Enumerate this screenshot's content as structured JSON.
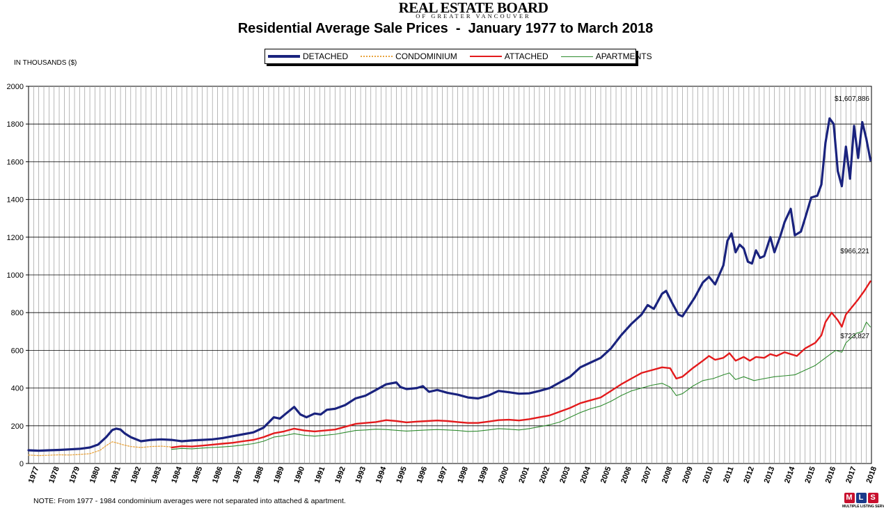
{
  "header": {
    "brand_name": "REAL ESTATE BOARD",
    "brand_sub": "OF GREATER VANCOUVER",
    "title": "Residential Average Sale Prices  -  January 1977 to March 2018"
  },
  "units_label": "IN THOUSANDS ($)",
  "note": "NOTE:  From 1977 - 1984 condominium averages were not separated into attached & apartment.",
  "logo": {
    "letters": [
      "M",
      "L",
      "S"
    ],
    "text": "MULTIPLE LISTING SERVICE"
  },
  "legend": [
    {
      "label": "DETACHED",
      "color": "#1a237e",
      "style": "solid"
    },
    {
      "label": "CONDOMINIUM",
      "color": "#e8a33d",
      "style": "dotted"
    },
    {
      "label": "ATTACHED",
      "color": "#e31a1c",
      "style": "solid"
    },
    {
      "label": "APARTMENTS",
      "color": "#2e8b2e",
      "style": "solid"
    }
  ],
  "chart_data": {
    "type": "line",
    "title": "Residential Average Sale Prices  -  January 1977 to March 2018",
    "ylabel": "IN THOUSANDS ($)",
    "xlim": [
      1977,
      2018.25
    ],
    "ylim": [
      0,
      2000
    ],
    "y_ticks": [
      0,
      200,
      400,
      600,
      800,
      1000,
      1200,
      1400,
      1600,
      1800,
      2000
    ],
    "x_tick_labels": [
      "1977",
      "1978",
      "1979",
      "1980",
      "1981",
      "1982",
      "1983",
      "1984",
      "1985",
      "1986",
      "1987",
      "1988",
      "1989",
      "1990",
      "1991",
      "1992",
      "1993",
      "1994",
      "1995",
      "1996",
      "1997",
      "1998",
      "1999",
      "2000",
      "2001",
      "2002",
      "2003",
      "2004",
      "2005",
      "2006",
      "2007",
      "2008",
      "2009",
      "2010",
      "2011",
      "2012",
      "2013",
      "2014",
      "2015",
      "2016",
      "2017",
      "2018"
    ],
    "grid": true,
    "series": [
      {
        "name": "DETACHED",
        "color": "#1a237e",
        "width": 3.2,
        "dash": "",
        "points": [
          [
            1977,
            70
          ],
          [
            1977.5,
            68
          ],
          [
            1978,
            70
          ],
          [
            1978.5,
            72
          ],
          [
            1979,
            75
          ],
          [
            1979.5,
            78
          ],
          [
            1980,
            85
          ],
          [
            1980.4,
            100
          ],
          [
            1980.8,
            140
          ],
          [
            1981.1,
            178
          ],
          [
            1981.3,
            185
          ],
          [
            1981.5,
            180
          ],
          [
            1981.7,
            160
          ],
          [
            1982,
            140
          ],
          [
            1982.5,
            118
          ],
          [
            1983,
            125
          ],
          [
            1983.5,
            128
          ],
          [
            1984,
            125
          ],
          [
            1984.5,
            118
          ],
          [
            1985,
            122
          ],
          [
            1985.5,
            125
          ],
          [
            1986,
            128
          ],
          [
            1986.5,
            135
          ],
          [
            1987,
            145
          ],
          [
            1987.5,
            155
          ],
          [
            1988,
            165
          ],
          [
            1988.5,
            190
          ],
          [
            1989,
            245
          ],
          [
            1989.3,
            238
          ],
          [
            1989.6,
            265
          ],
          [
            1990,
            300
          ],
          [
            1990.3,
            260
          ],
          [
            1990.6,
            245
          ],
          [
            1991,
            265
          ],
          [
            1991.3,
            260
          ],
          [
            1991.6,
            285
          ],
          [
            1992,
            290
          ],
          [
            1992.5,
            310
          ],
          [
            1993,
            345
          ],
          [
            1993.5,
            360
          ],
          [
            1994,
            390
          ],
          [
            1994.5,
            420
          ],
          [
            1995,
            430
          ],
          [
            1995.2,
            405
          ],
          [
            1995.5,
            395
          ],
          [
            1996,
            400
          ],
          [
            1996.3,
            410
          ],
          [
            1996.6,
            380
          ],
          [
            1997,
            390
          ],
          [
            1997.5,
            375
          ],
          [
            1998,
            365
          ],
          [
            1998.5,
            350
          ],
          [
            1999,
            345
          ],
          [
            1999.5,
            360
          ],
          [
            2000,
            385
          ],
          [
            2000.5,
            378
          ],
          [
            2001,
            370
          ],
          [
            2001.5,
            372
          ],
          [
            2002,
            385
          ],
          [
            2002.5,
            400
          ],
          [
            2003,
            430
          ],
          [
            2003.5,
            460
          ],
          [
            2004,
            510
          ],
          [
            2004.5,
            535
          ],
          [
            2005,
            560
          ],
          [
            2005.5,
            610
          ],
          [
            2006,
            680
          ],
          [
            2006.5,
            740
          ],
          [
            2007,
            790
          ],
          [
            2007.3,
            840
          ],
          [
            2007.6,
            820
          ],
          [
            2008,
            900
          ],
          [
            2008.2,
            915
          ],
          [
            2008.5,
            850
          ],
          [
            2008.8,
            790
          ],
          [
            2009,
            780
          ],
          [
            2009.3,
            830
          ],
          [
            2009.6,
            880
          ],
          [
            2010,
            960
          ],
          [
            2010.3,
            990
          ],
          [
            2010.6,
            950
          ],
          [
            2011,
            1050
          ],
          [
            2011.2,
            1180
          ],
          [
            2011.4,
            1220
          ],
          [
            2011.6,
            1120
          ],
          [
            2011.8,
            1160
          ],
          [
            2012,
            1140
          ],
          [
            2012.2,
            1070
          ],
          [
            2012.4,
            1060
          ],
          [
            2012.6,
            1130
          ],
          [
            2012.8,
            1090
          ],
          [
            2013,
            1100
          ],
          [
            2013.3,
            1200
          ],
          [
            2013.5,
            1120
          ],
          [
            2013.8,
            1210
          ],
          [
            2014,
            1280
          ],
          [
            2014.3,
            1350
          ],
          [
            2014.5,
            1210
          ],
          [
            2014.8,
            1230
          ],
          [
            2015,
            1300
          ],
          [
            2015.3,
            1410
          ],
          [
            2015.6,
            1420
          ],
          [
            2015.8,
            1480
          ],
          [
            2016,
            1700
          ],
          [
            2016.2,
            1830
          ],
          [
            2016.4,
            1800
          ],
          [
            2016.6,
            1550
          ],
          [
            2016.8,
            1470
          ],
          [
            2017,
            1680
          ],
          [
            2017.2,
            1510
          ],
          [
            2017.4,
            1790
          ],
          [
            2017.6,
            1620
          ],
          [
            2017.8,
            1810
          ],
          [
            2018,
            1720
          ],
          [
            2018.2,
            1608
          ]
        ]
      },
      {
        "name": "CONDOMINIUM",
        "color": "#e8a33d",
        "width": 1.3,
        "dash": "2,2",
        "points": [
          [
            1977,
            45
          ],
          [
            1977.5,
            42
          ],
          [
            1978,
            44
          ],
          [
            1978.5,
            46
          ],
          [
            1979,
            45
          ],
          [
            1979.5,
            48
          ],
          [
            1980,
            52
          ],
          [
            1980.5,
            70
          ],
          [
            1980.8,
            95
          ],
          [
            1981.1,
            115
          ],
          [
            1981.3,
            110
          ],
          [
            1981.6,
            100
          ],
          [
            1982,
            90
          ],
          [
            1982.5,
            85
          ],
          [
            1983,
            90
          ],
          [
            1983.5,
            92
          ],
          [
            1984,
            88
          ]
        ]
      },
      {
        "name": "ATTACHED",
        "color": "#e31a1c",
        "width": 2.4,
        "dash": "",
        "points": [
          [
            1984,
            85
          ],
          [
            1984.5,
            92
          ],
          [
            1985,
            90
          ],
          [
            1985.5,
            95
          ],
          [
            1986,
            100
          ],
          [
            1986.5,
            105
          ],
          [
            1987,
            110
          ],
          [
            1987.5,
            118
          ],
          [
            1988,
            125
          ],
          [
            1988.5,
            140
          ],
          [
            1989,
            160
          ],
          [
            1989.5,
            170
          ],
          [
            1990,
            185
          ],
          [
            1990.5,
            175
          ],
          [
            1991,
            170
          ],
          [
            1991.5,
            175
          ],
          [
            1992,
            180
          ],
          [
            1992.5,
            195
          ],
          [
            1993,
            210
          ],
          [
            1993.5,
            215
          ],
          [
            1994,
            220
          ],
          [
            1994.5,
            230
          ],
          [
            1995,
            225
          ],
          [
            1995.5,
            218
          ],
          [
            1996,
            222
          ],
          [
            1996.5,
            225
          ],
          [
            1997,
            228
          ],
          [
            1997.5,
            225
          ],
          [
            1998,
            220
          ],
          [
            1998.5,
            215
          ],
          [
            1999,
            215
          ],
          [
            1999.5,
            222
          ],
          [
            2000,
            230
          ],
          [
            2000.5,
            232
          ],
          [
            2001,
            228
          ],
          [
            2001.5,
            235
          ],
          [
            2002,
            245
          ],
          [
            2002.5,
            255
          ],
          [
            2003,
            275
          ],
          [
            2003.5,
            295
          ],
          [
            2004,
            320
          ],
          [
            2004.5,
            335
          ],
          [
            2005,
            350
          ],
          [
            2005.5,
            385
          ],
          [
            2006,
            420
          ],
          [
            2006.5,
            450
          ],
          [
            2007,
            480
          ],
          [
            2007.5,
            495
          ],
          [
            2008,
            510
          ],
          [
            2008.4,
            505
          ],
          [
            2008.7,
            450
          ],
          [
            2009,
            460
          ],
          [
            2009.5,
            505
          ],
          [
            2010,
            545
          ],
          [
            2010.3,
            570
          ],
          [
            2010.6,
            550
          ],
          [
            2011,
            560
          ],
          [
            2011.3,
            585
          ],
          [
            2011.6,
            545
          ],
          [
            2012,
            565
          ],
          [
            2012.3,
            545
          ],
          [
            2012.6,
            565
          ],
          [
            2013,
            560
          ],
          [
            2013.3,
            580
          ],
          [
            2013.6,
            570
          ],
          [
            2014,
            590
          ],
          [
            2014.3,
            580
          ],
          [
            2014.6,
            570
          ],
          [
            2015,
            610
          ],
          [
            2015.5,
            640
          ],
          [
            2015.8,
            680
          ],
          [
            2016,
            750
          ],
          [
            2016.3,
            800
          ],
          [
            2016.6,
            760
          ],
          [
            2016.8,
            725
          ],
          [
            2017,
            790
          ],
          [
            2017.3,
            830
          ],
          [
            2017.6,
            870
          ],
          [
            2017.9,
            915
          ],
          [
            2018.2,
            966
          ]
        ]
      },
      {
        "name": "APARTMENTS",
        "color": "#2e8b2e",
        "width": 1.1,
        "dash": "",
        "points": [
          [
            1984,
            75
          ],
          [
            1984.5,
            80
          ],
          [
            1985,
            78
          ],
          [
            1985.5,
            82
          ],
          [
            1986,
            85
          ],
          [
            1986.5,
            88
          ],
          [
            1987,
            92
          ],
          [
            1987.5,
            98
          ],
          [
            1988,
            105
          ],
          [
            1988.5,
            118
          ],
          [
            1989,
            140
          ],
          [
            1989.5,
            148
          ],
          [
            1990,
            158
          ],
          [
            1990.5,
            150
          ],
          [
            1991,
            145
          ],
          [
            1991.5,
            150
          ],
          [
            1992,
            155
          ],
          [
            1992.5,
            165
          ],
          [
            1993,
            175
          ],
          [
            1993.5,
            178
          ],
          [
            1994,
            182
          ],
          [
            1994.5,
            180
          ],
          [
            1995,
            176
          ],
          [
            1995.5,
            172
          ],
          [
            1996,
            175
          ],
          [
            1996.5,
            178
          ],
          [
            1997,
            180
          ],
          [
            1997.5,
            178
          ],
          [
            1998,
            175
          ],
          [
            1998.5,
            170
          ],
          [
            1999,
            172
          ],
          [
            1999.5,
            178
          ],
          [
            2000,
            185
          ],
          [
            2000.5,
            182
          ],
          [
            2001,
            178
          ],
          [
            2001.5,
            185
          ],
          [
            2002,
            195
          ],
          [
            2002.5,
            205
          ],
          [
            2003,
            220
          ],
          [
            2003.5,
            245
          ],
          [
            2004,
            270
          ],
          [
            2004.5,
            290
          ],
          [
            2005,
            305
          ],
          [
            2005.5,
            330
          ],
          [
            2006,
            360
          ],
          [
            2006.5,
            385
          ],
          [
            2007,
            400
          ],
          [
            2007.5,
            415
          ],
          [
            2008,
            425
          ],
          [
            2008.4,
            405
          ],
          [
            2008.7,
            360
          ],
          [
            2009,
            370
          ],
          [
            2009.5,
            410
          ],
          [
            2010,
            440
          ],
          [
            2010.5,
            450
          ],
          [
            2011,
            470
          ],
          [
            2011.3,
            480
          ],
          [
            2011.6,
            445
          ],
          [
            2012,
            460
          ],
          [
            2012.5,
            440
          ],
          [
            2013,
            450
          ],
          [
            2013.5,
            460
          ],
          [
            2014,
            465
          ],
          [
            2014.5,
            470
          ],
          [
            2015,
            495
          ],
          [
            2015.5,
            520
          ],
          [
            2016,
            560
          ],
          [
            2016.5,
            600
          ],
          [
            2016.8,
            590
          ],
          [
            2017,
            640
          ],
          [
            2017.5,
            690
          ],
          [
            2017.8,
            700
          ],
          [
            2018,
            750
          ],
          [
            2018.2,
            724
          ]
        ]
      }
    ],
    "annotations": [
      {
        "text": "$1,607,886",
        "x": 2018.2,
        "y": 1608
      },
      {
        "text": "$966,221",
        "x": 2018.2,
        "y": 966
      },
      {
        "text": "$723,827",
        "x": 2018.2,
        "y": 724
      }
    ]
  }
}
